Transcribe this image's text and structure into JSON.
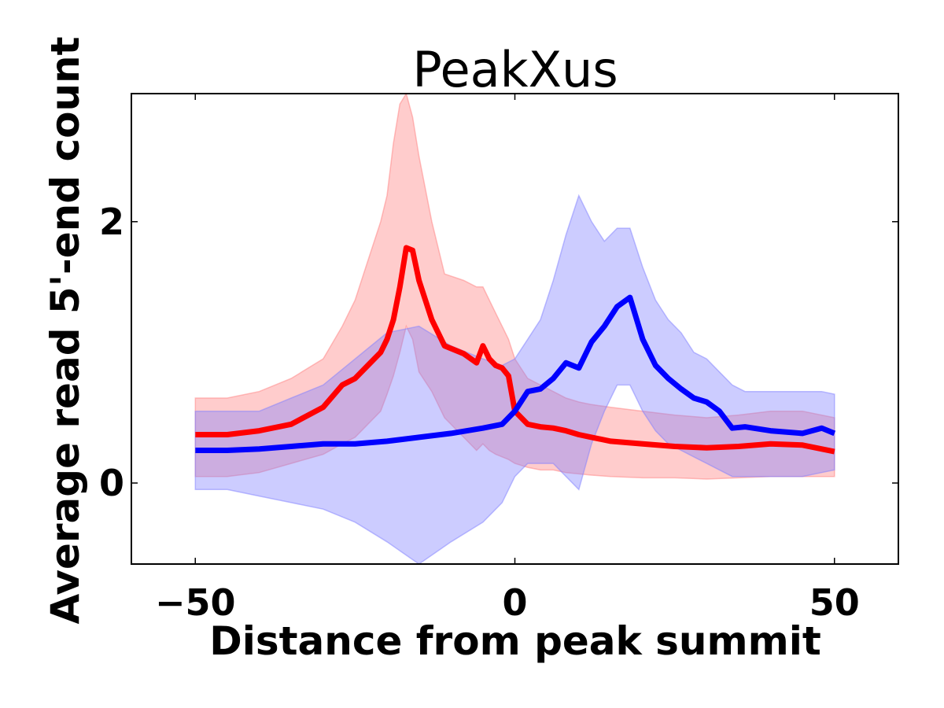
{
  "chart_data": {
    "type": "line",
    "title": "PeakXus",
    "xlabel": "Distance from peak summit",
    "ylabel": "Average read 5'-end count",
    "xlim": [
      -60,
      60
    ],
    "ylim": [
      -0.62,
      2.98
    ],
    "x_ticks": [
      -50,
      0,
      50
    ],
    "x_tick_labels": [
      "−50",
      "0",
      "50"
    ],
    "y_ticks": [
      0,
      2
    ],
    "y_tick_labels": [
      "0",
      "2"
    ],
    "grid": false,
    "legend": "none",
    "series": [
      {
        "color": "#ff0000",
        "band_color": "#ff8080",
        "x": [
          -50,
          -45,
          -40,
          -35,
          -30,
          -27,
          -25,
          -23,
          -21,
          -20,
          -19,
          -18,
          -17,
          -16,
          -15,
          -13,
          -11,
          -8,
          -6,
          -5,
          -4,
          -3,
          -2,
          -1,
          0,
          2,
          4,
          6,
          8,
          10,
          12,
          15,
          20,
          25,
          30,
          35,
          40,
          45,
          50
        ],
        "y": [
          0.37,
          0.37,
          0.4,
          0.45,
          0.58,
          0.75,
          0.8,
          0.9,
          1.0,
          1.1,
          1.25,
          1.5,
          1.8,
          1.78,
          1.55,
          1.25,
          1.05,
          0.99,
          0.92,
          1.05,
          0.95,
          0.9,
          0.88,
          0.82,
          0.55,
          0.45,
          0.43,
          0.42,
          0.4,
          0.37,
          0.35,
          0.32,
          0.3,
          0.28,
          0.27,
          0.28,
          0.3,
          0.29,
          0.24
        ],
        "lower": [
          0.05,
          0.05,
          0.08,
          0.15,
          0.22,
          0.3,
          0.35,
          0.45,
          0.55,
          0.68,
          0.82,
          1.0,
          1.2,
          1.1,
          0.85,
          0.7,
          0.5,
          0.35,
          0.25,
          0.3,
          0.25,
          0.22,
          0.2,
          0.18,
          0.15,
          0.12,
          0.1,
          0.1,
          0.08,
          0.07,
          0.06,
          0.05,
          0.04,
          0.04,
          0.03,
          0.04,
          0.05,
          0.05,
          0.05
        ],
        "upper": [
          0.65,
          0.65,
          0.7,
          0.8,
          0.95,
          1.2,
          1.4,
          1.7,
          2.0,
          2.2,
          2.6,
          2.9,
          2.98,
          2.8,
          2.5,
          2.0,
          1.6,
          1.55,
          1.5,
          1.5,
          1.4,
          1.3,
          1.2,
          1.1,
          0.95,
          0.8,
          0.75,
          0.7,
          0.65,
          0.62,
          0.6,
          0.58,
          0.55,
          0.52,
          0.5,
          0.52,
          0.55,
          0.55,
          0.5
        ]
      },
      {
        "color": "#0000ff",
        "band_color": "#8080ff",
        "x": [
          -50,
          -45,
          -40,
          -35,
          -30,
          -25,
          -20,
          -15,
          -10,
          -5,
          -2,
          0,
          2,
          4,
          6,
          8,
          10,
          12,
          14,
          16,
          18,
          20,
          22,
          24,
          26,
          28,
          30,
          32,
          34,
          36,
          40,
          45,
          48,
          50
        ],
        "y": [
          0.25,
          0.25,
          0.26,
          0.28,
          0.3,
          0.3,
          0.32,
          0.35,
          0.38,
          0.42,
          0.45,
          0.55,
          0.7,
          0.72,
          0.8,
          0.92,
          0.88,
          1.08,
          1.2,
          1.35,
          1.42,
          1.1,
          0.9,
          0.8,
          0.72,
          0.65,
          0.62,
          0.55,
          0.42,
          0.43,
          0.4,
          0.38,
          0.42,
          0.38
        ],
        "lower": [
          -0.05,
          -0.05,
          -0.1,
          -0.15,
          -0.2,
          -0.3,
          -0.45,
          -0.62,
          -0.45,
          -0.3,
          -0.15,
          0.05,
          0.15,
          0.15,
          0.15,
          0.05,
          -0.05,
          0.3,
          0.55,
          0.75,
          0.75,
          0.55,
          0.4,
          0.3,
          0.25,
          0.2,
          0.15,
          0.1,
          0.05,
          0.05,
          0.05,
          0.05,
          0.08,
          0.1
        ],
        "upper": [
          0.55,
          0.55,
          0.55,
          0.65,
          0.75,
          0.95,
          1.15,
          1.2,
          1.05,
          0.95,
          0.9,
          0.95,
          1.1,
          1.25,
          1.55,
          1.9,
          2.2,
          2.0,
          1.85,
          1.95,
          1.95,
          1.65,
          1.4,
          1.25,
          1.15,
          1.0,
          0.95,
          0.85,
          0.75,
          0.7,
          0.7,
          0.7,
          0.7,
          0.68
        ]
      }
    ]
  }
}
